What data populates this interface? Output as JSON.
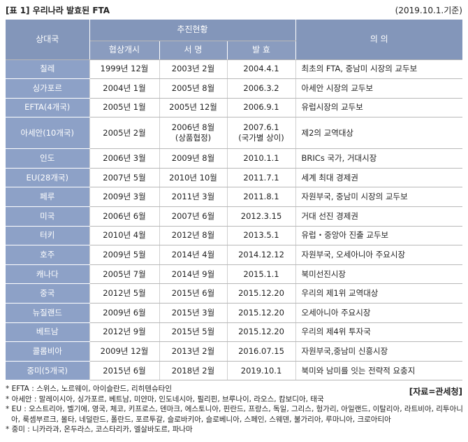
{
  "header": {
    "title": "[표 1] 우리나라 발효된 FTA",
    "date": "(2019.10.1.기준)"
  },
  "table": {
    "header": {
      "country": "상대국",
      "progress": "추진현황",
      "sub": [
        "협상개시",
        "서 명",
        "발 효"
      ],
      "meaning": "의 의"
    },
    "rows": [
      [
        "칠레",
        "1999년 12월",
        "2003년 2월",
        "2004.4.1",
        "최초의 FTA, 중남미 시장의 교두보"
      ],
      [
        "싱가포르",
        "2004년 1월",
        "2005년 8월",
        "2006.3.2",
        "아세안 시장의 교두보"
      ],
      [
        "EFTA(4개국)",
        "2005년 1월",
        "2005년 12월",
        "2006.9.1",
        "유럽시장의 교두보"
      ],
      [
        "아세안(10개국)",
        "2005년 2월",
        "2006년 8월\n(상품협정)",
        "2007.6.1\n(국가별 상이)",
        "제2의 교역대상"
      ],
      [
        "인도",
        "2006년 3월",
        "2009년 8월",
        "2010.1.1",
        "BRICs 국가, 거대시장"
      ],
      [
        "EU(28개국)",
        "2007년 5월",
        "2010년 10월",
        "2011.7.1",
        "세계 최대 경제권"
      ],
      [
        "페루",
        "2009년 3월",
        "2011년 3월",
        "2011.8.1",
        "자원부국, 중남미 시장의 교두보"
      ],
      [
        "미국",
        "2006년 6월",
        "2007년 6월",
        "2012.3.15",
        "거대 선진 경제권"
      ],
      [
        "터키",
        "2010년 4월",
        "2012년 8월",
        "2013.5.1",
        "유럽・중앙아 진출 교두보"
      ],
      [
        "호주",
        "2009년 5월",
        "2014년 4월",
        "2014.12.12",
        "자원부국, 오세아니아 주요시장"
      ],
      [
        "캐나다",
        "2005년 7월",
        "2014년 9월",
        "2015.1.1",
        "북미선진시장"
      ],
      [
        "중국",
        "2012년 5월",
        "2015년 6월",
        "2015.12.20",
        "우리의 제1위 교역대상"
      ],
      [
        "뉴질랜드",
        "2009년 6월",
        "2015년 3월",
        "2015.12.20",
        "오세아니아 주요시장"
      ],
      [
        "베트남",
        "2012년 9월",
        "2015년 5월",
        "2015.12.20",
        "우리의 제4위 투자국"
      ],
      [
        "콜롬비아",
        "2009년 12월",
        "2013년 2월",
        "2016.07.15",
        "자원부국,중남미 신흥시장"
      ],
      [
        "중미(5개국)",
        "2015년 6월",
        "2018년 2월",
        "2019.10.1",
        "북미와 남미를 잇는 전략적 요충지"
      ]
    ]
  },
  "notes": [
    "* EFTA : 스위스, 노르웨이, 아이슬란드, 리히텐슈타인",
    "* 아세안 : 말레이시아, 싱가포르, 베트남, 미얀마, 인도네시아, 필리핀, 브루나이, 라오스, 캄보디아, 태국",
    "* EU : 오스트리아, 벨기에, 영국, 체코, 키프로스, 덴마크, 에스토니아, 핀란드, 프랑스, 독일, 그리스, 헝가리, 아일랜드, 이탈리아, 라트비아, 리투아니아, 룩셈부르크, 몰타, 네덜란드, 폴란드, 포르투갈, 슬로바키아, 슬로베니아, 스페인, 스웨덴, 불가리아, 루마니아, 크로아티아",
    "* 중미 : 니카라과, 온두라스, 코스타리카, 엘살바도르, 파나마"
  ],
  "source": "[자료=관세청]"
}
